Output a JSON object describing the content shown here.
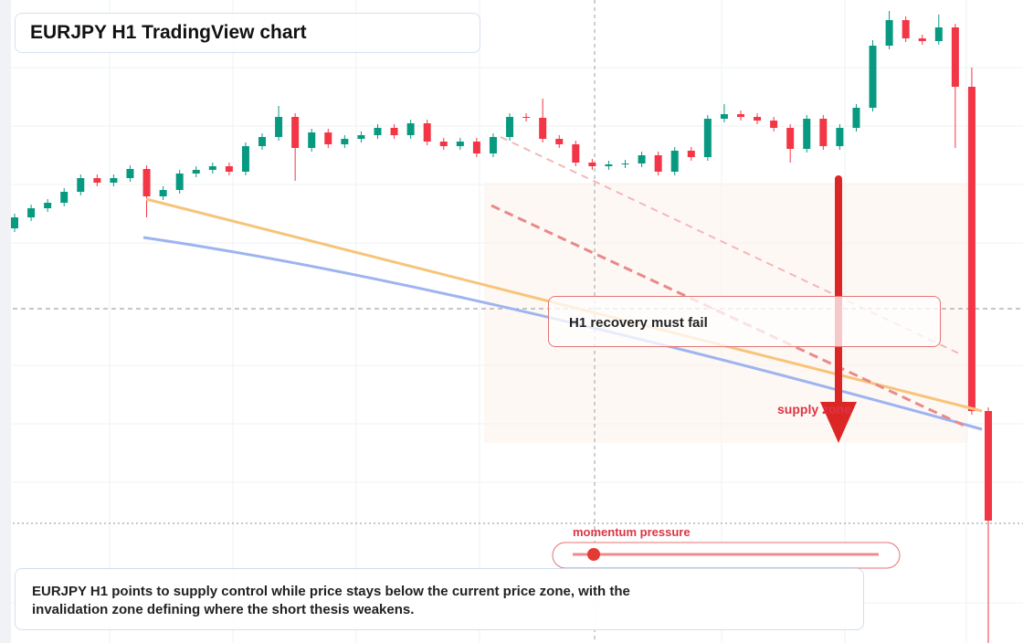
{
  "chart_data": {
    "type": "candlestick",
    "title": "EURJPY H1 TradingView chart",
    "annotations": [
      "H1 recovery must fail",
      "supply zone",
      "momentum pressure"
    ],
    "caption": "EURJPY H1 points to supply control while price stays below the current price zone, with the invalidation zone defining where the short thesis weakens.",
    "up_color": "#089981",
    "down_color": "#f23645",
    "ylim": [
      0,
      70.4
    ],
    "open": [
      45.4,
      46.6,
      47.6,
      48.2,
      49.4,
      50.9,
      50.4,
      50.9,
      51.9,
      48.9,
      49.6,
      51.4,
      51.8,
      52.2,
      51.6,
      54.4,
      55.4,
      57.6,
      54.2,
      55.9,
      54.6,
      55.2,
      55.6,
      56.4,
      55.6,
      56.9,
      54.9,
      54.4,
      54.9,
      53.6,
      55.4,
      57.6,
      57.5,
      55.2,
      54.6,
      52.6,
      52.2,
      52.4,
      52.5,
      53.4,
      51.6,
      53.9,
      53.2,
      57.4,
      57.9,
      57.6,
      57.2,
      56.4,
      54.1,
      57.4,
      54.4,
      56.4,
      58.6,
      65.4,
      68.2,
      66.2,
      65.9,
      67.4,
      60.9,
      25.4
    ],
    "high": [
      47.0,
      48.0,
      48.6,
      49.8,
      51.3,
      51.3,
      51.3,
      52.3,
      52.3,
      50.0,
      51.8,
      52.2,
      52.6,
      52.6,
      54.8,
      55.8,
      58.8,
      58.0,
      56.3,
      56.3,
      55.6,
      56.0,
      56.8,
      56.8,
      57.3,
      57.3,
      55.3,
      55.3,
      55.3,
      55.8,
      58.0,
      58.0,
      59.6,
      55.6,
      55.0,
      53.0,
      52.8,
      52.9,
      53.8,
      53.8,
      54.3,
      54.3,
      57.8,
      59.0,
      58.3,
      58.0,
      57.6,
      56.8,
      57.8,
      57.8,
      56.8,
      59.0,
      66.0,
      69.2,
      68.6,
      66.6,
      68.8,
      67.8,
      63.0,
      25.8
    ],
    "low": [
      45.0,
      46.2,
      47.2,
      47.8,
      49.0,
      50.0,
      50.0,
      50.5,
      46.6,
      48.5,
      49.2,
      51.0,
      51.4,
      51.2,
      51.2,
      54.0,
      55.0,
      50.6,
      53.8,
      54.2,
      54.2,
      54.8,
      55.2,
      55.2,
      55.2,
      54.5,
      54.0,
      54.0,
      53.2,
      53.2,
      55.0,
      57.1,
      54.8,
      54.2,
      52.2,
      51.8,
      51.8,
      52.0,
      52.1,
      51.2,
      51.2,
      52.8,
      52.8,
      57.0,
      57.2,
      56.8,
      56.0,
      52.6,
      53.7,
      54.0,
      54.0,
      56.0,
      58.2,
      65.0,
      65.8,
      65.5,
      65.5,
      54.2,
      25.0,
      0
    ],
    "close": [
      46.6,
      47.6,
      48.2,
      49.4,
      50.9,
      50.4,
      50.9,
      51.9,
      48.9,
      49.6,
      51.4,
      51.8,
      52.2,
      51.6,
      54.4,
      55.4,
      57.6,
      54.2,
      55.9,
      54.6,
      55.2,
      55.6,
      56.4,
      55.6,
      56.9,
      54.9,
      54.4,
      54.9,
      53.6,
      55.4,
      57.6,
      57.5,
      55.2,
      54.6,
      52.6,
      52.2,
      52.4,
      52.5,
      53.4,
      51.6,
      53.9,
      53.2,
      57.4,
      57.9,
      57.6,
      57.2,
      56.4,
      54.1,
      57.4,
      54.4,
      56.4,
      58.6,
      65.4,
      68.2,
      66.2,
      65.9,
      67.4,
      60.9,
      25.4,
      13.4
    ]
  }
}
